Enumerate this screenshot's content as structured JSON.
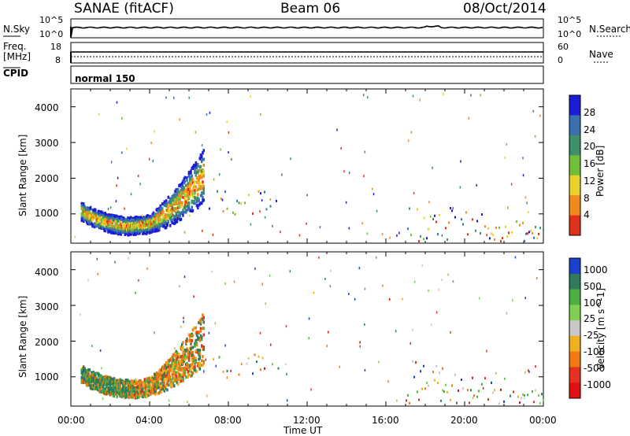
{
  "header": {
    "radar": "SANAE (fitACF)",
    "beam": "Beam 06",
    "date": "08/Oct/2014"
  },
  "summary_labels": {
    "nsky": "N.Sky",
    "nsearch": "N.Search",
    "freq": "Freq.",
    "freq_unit": "[MHz]",
    "nave": "Nave",
    "cpid": "CPID",
    "cpid_value": "normal 150",
    "noise_top": "10^5",
    "noise_bottom": "10^0",
    "freq_top": "18",
    "freq_bottom": "8",
    "nave_top": "60",
    "nave_bottom": "0"
  },
  "chart_data": [
    {
      "type": "heatmap",
      "title": "",
      "ylabel": "Slant Range [km]",
      "xlabel": "",
      "ylim": [
        180,
        4500
      ],
      "yticks": [
        "1000",
        "2000",
        "3000",
        "4000"
      ],
      "colorbar_label": "Power [dB]",
      "colorbar_ticks": [
        "4",
        "8",
        "12",
        "16",
        "20",
        "24",
        "28"
      ],
      "colorbar_colors": [
        "#1b1bd8",
        "#3a6fb0",
        "#3e8f6a",
        "#6fbf3a",
        "#e8d22a",
        "#f08a1a",
        "#e03018"
      ]
    },
    {
      "type": "heatmap",
      "title": "",
      "ylabel": "Slant Range [km]",
      "xlabel": "Time UT",
      "ylim": [
        180,
        4500
      ],
      "yticks": [
        "1000",
        "2000",
        "3000",
        "4000"
      ],
      "colorbar_label": "Velocity [m s^-1]",
      "colorbar_ticks": [
        "1000",
        "500",
        "100",
        "25",
        "-25",
        "-100",
        "-500",
        "-1000"
      ],
      "colorbar_colors": [
        "#1b3fd0",
        "#2f7a5a",
        "#4cb040",
        "#7fd050",
        "#c8c8c8",
        "#f0b020",
        "#f07a10",
        "#e83020",
        "#e01010"
      ]
    }
  ],
  "time_axis": {
    "label": "Time UT",
    "ticks": [
      "00:00",
      "04:00",
      "08:00",
      "12:00",
      "16:00",
      "20:00",
      "00:00"
    ]
  }
}
